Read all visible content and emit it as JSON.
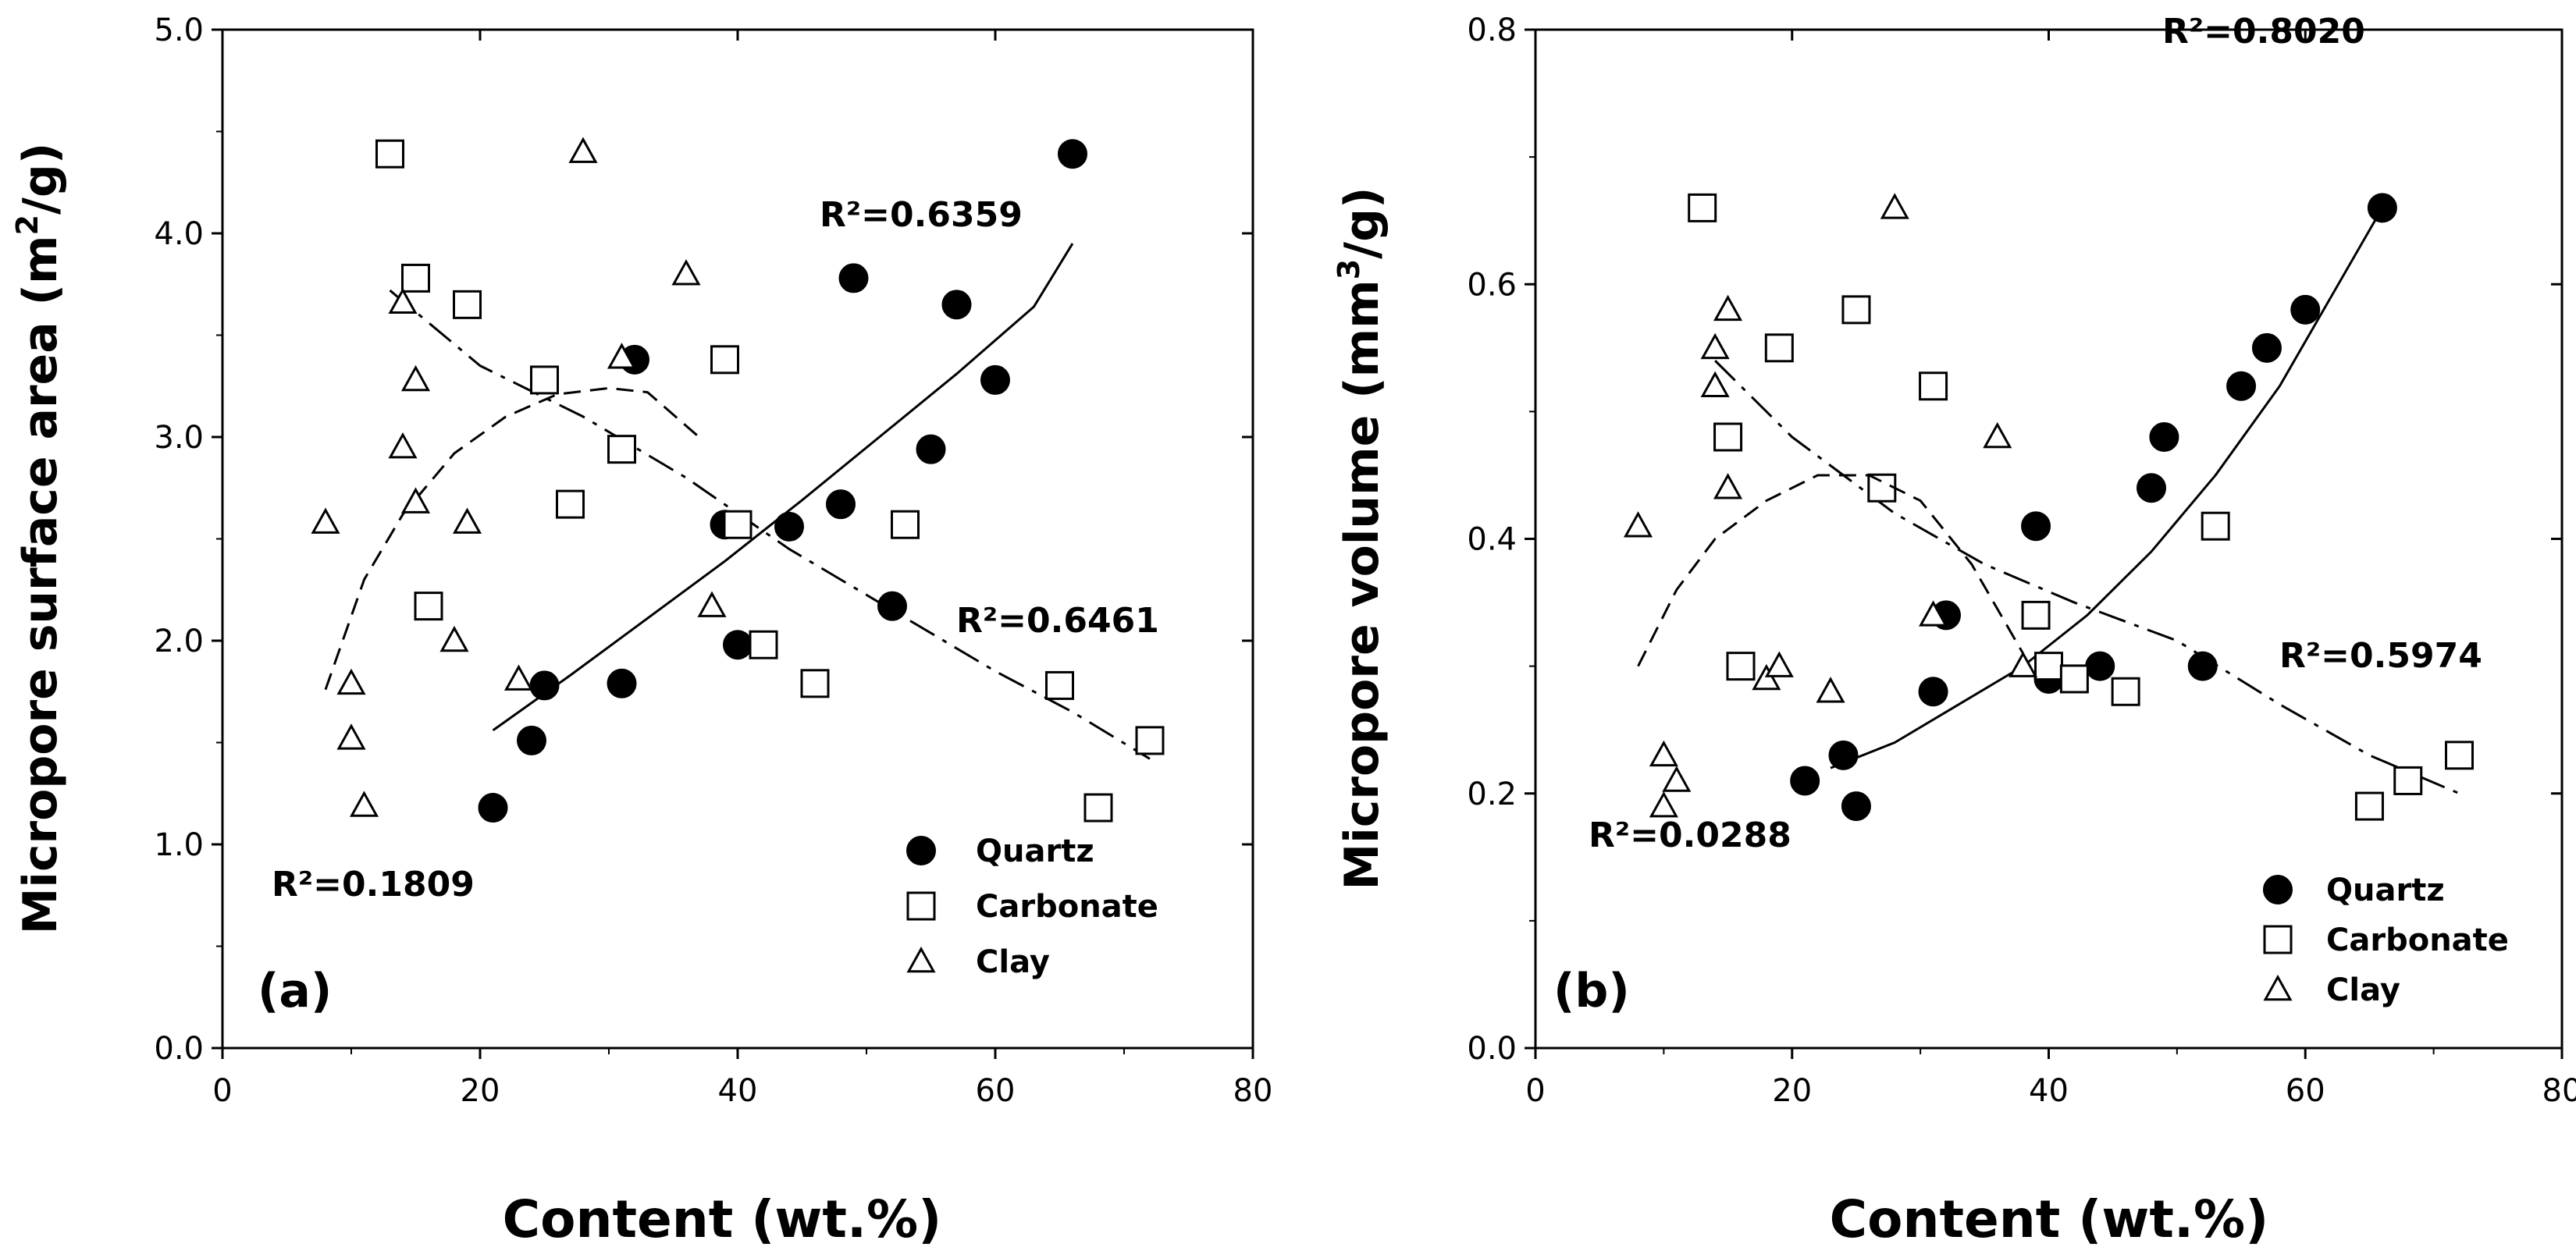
{
  "chart_data": [
    {
      "type": "scatter",
      "panel_label": "(a)",
      "xlabel": "Content (wt.%)",
      "ylabel_prefix": "Micropore surface area (m",
      "ylabel_sup": "2",
      "ylabel_suffix": "/g)",
      "xlim": [
        0,
        80
      ],
      "ylim": [
        0,
        5
      ],
      "xticks": [
        0,
        20,
        40,
        60,
        80
      ],
      "xtick_labels": [
        "0",
        "20",
        "40",
        "60",
        "80"
      ],
      "yticks": [
        0,
        1,
        2,
        3,
        4,
        5
      ],
      "ytick_labels": [
        "0.0",
        "1.0",
        "2.0",
        "3.0",
        "4.0",
        "5.0"
      ],
      "legend_position": "bottom-right",
      "series": [
        {
          "name": "Quartz",
          "marker": "filled-circle",
          "x": [
            21,
            24,
            25,
            31,
            32,
            39,
            40,
            44,
            48,
            49,
            52,
            55,
            57,
            60,
            66
          ],
          "y": [
            1.18,
            1.51,
            1.78,
            1.79,
            3.38,
            2.57,
            1.98,
            2.56,
            2.67,
            3.78,
            2.17,
            2.94,
            3.65,
            3.28,
            4.39
          ],
          "fit": {
            "kind": "solid",
            "x": [
              21,
              27,
              33,
              39,
              45,
              51,
              57,
              63,
              66
            ],
            "y": [
              1.56,
              1.83,
              2.11,
              2.39,
              2.69,
              3.0,
              3.31,
              3.64,
              3.95
            ],
            "r2": "R²=0.6359"
          }
        },
        {
          "name": "Carbonate",
          "marker": "open-square",
          "x": [
            13,
            15,
            16,
            19,
            25,
            27,
            31,
            39,
            40,
            42,
            46,
            53,
            65,
            68,
            72
          ],
          "y": [
            4.39,
            3.78,
            2.17,
            3.65,
            3.28,
            2.67,
            2.94,
            3.38,
            2.57,
            1.98,
            1.79,
            2.57,
            1.78,
            1.18,
            1.51
          ],
          "fit": {
            "kind": "dash-dot",
            "x": [
              13,
              20,
              28,
              36,
              44,
              52,
              60,
              66,
              72
            ],
            "y": [
              3.72,
              3.35,
              3.1,
              2.8,
              2.45,
              2.15,
              1.85,
              1.65,
              1.42
            ],
            "r2": "R²=0.6461"
          }
        },
        {
          "name": "Clay",
          "marker": "open-triangle",
          "x": [
            8,
            10,
            10,
            11,
            14,
            14,
            15,
            15,
            18,
            19,
            23,
            28,
            31,
            36,
            38
          ],
          "y": [
            2.58,
            1.79,
            1.52,
            1.19,
            3.66,
            2.95,
            3.28,
            2.68,
            2.0,
            2.58,
            1.81,
            4.4,
            3.39,
            3.8,
            2.17
          ],
          "fit": {
            "kind": "dashed",
            "x": [
              8,
              11,
              14,
              18,
              22,
              26,
              30,
              33,
              37
            ],
            "y": [
              1.76,
              2.3,
              2.62,
              2.92,
              3.1,
              3.21,
              3.24,
              3.22,
              3.0
            ],
            "r2": "R²=0.1809"
          }
        }
      ]
    },
    {
      "type": "scatter",
      "panel_label": "(b)",
      "xlabel": "Content (wt.%)",
      "ylabel_prefix": "Micropore volume (mm",
      "ylabel_sup": "3",
      "ylabel_suffix": "/g)",
      "xlim": [
        0,
        80
      ],
      "ylim": [
        0,
        0.8
      ],
      "xticks": [
        0,
        20,
        40,
        60,
        80
      ],
      "xtick_labels": [
        "0",
        "20",
        "40",
        "60",
        "80"
      ],
      "yticks": [
        0,
        0.2,
        0.4,
        0.6,
        0.8
      ],
      "ytick_labels": [
        "0.0",
        "0.2",
        "0.4",
        "0.6",
        "0.8"
      ],
      "legend_position": "bottom-right",
      "series": [
        {
          "name": "Quartz",
          "marker": "filled-circle",
          "x": [
            21,
            24,
            25,
            31,
            32,
            39,
            40,
            44,
            48,
            49,
            52,
            55,
            57,
            60,
            66
          ],
          "y": [
            0.21,
            0.23,
            0.19,
            0.28,
            0.34,
            0.41,
            0.29,
            0.3,
            0.44,
            0.48,
            0.3,
            0.52,
            0.55,
            0.58,
            0.66
          ],
          "fit": {
            "kind": "solid",
            "x": [
              23,
              28,
              33,
              38,
              43,
              48,
              53,
              58,
              62,
              66
            ],
            "y": [
              0.22,
              0.24,
              0.27,
              0.3,
              0.34,
              0.39,
              0.45,
              0.52,
              0.59,
              0.66
            ],
            "r2": "R²=0.8020"
          }
        },
        {
          "name": "Carbonate",
          "marker": "open-square",
          "x": [
            13,
            15,
            16,
            19,
            25,
            27,
            31,
            39,
            40,
            42,
            46,
            53,
            65,
            68,
            72
          ],
          "y": [
            0.66,
            0.48,
            0.3,
            0.55,
            0.58,
            0.44,
            0.52,
            0.34,
            0.3,
            0.29,
            0.28,
            0.41,
            0.19,
            0.21,
            0.23
          ],
          "fit": {
            "kind": "dash-dot",
            "x": [
              14,
              20,
              28,
              35,
              42,
              50,
              58,
              65,
              72
            ],
            "y": [
              0.54,
              0.48,
              0.42,
              0.38,
              0.35,
              0.32,
              0.27,
              0.23,
              0.2
            ],
            "r2": "R²=0.5974"
          }
        },
        {
          "name": "Clay",
          "marker": "open-triangle",
          "x": [
            8,
            10,
            10,
            11,
            14,
            14,
            15,
            15,
            18,
            19,
            23,
            28,
            31,
            36,
            38
          ],
          "y": [
            0.41,
            0.23,
            0.19,
            0.21,
            0.55,
            0.52,
            0.58,
            0.44,
            0.29,
            0.3,
            0.28,
            0.66,
            0.34,
            0.48,
            0.3
          ],
          "fit": {
            "kind": "dashed",
            "x": [
              8,
              11,
              14,
              18,
              22,
              26,
              30,
              34,
              38
            ],
            "y": [
              0.3,
              0.36,
              0.4,
              0.43,
              0.45,
              0.45,
              0.43,
              0.38,
              0.31
            ],
            "r2": "R²=0.0288"
          }
        }
      ]
    }
  ]
}
